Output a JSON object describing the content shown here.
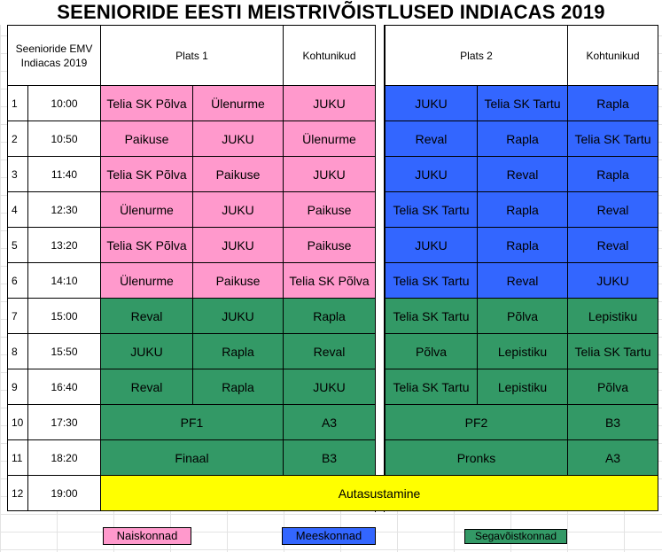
{
  "title": "SEENIORIDE EESTI MEISTRIVÕISTLUSED INDIACAS 2019",
  "header": {
    "corner": "Seenioride EMV Indiacas 2019",
    "court1": "Plats 1",
    "referees1": "Kohtunikud",
    "court2": "Plats 2",
    "referees2": "Kohtunikud"
  },
  "rows": [
    {
      "n": "1",
      "time": "10:00",
      "c1a": "Telia SK Põlva",
      "c1b": "Ülenurme",
      "r1": "JUKU",
      "c2a": "JUKU",
      "c2b": "Telia SK Tartu",
      "r2": "Rapla"
    },
    {
      "n": "2",
      "time": "10:50",
      "c1a": "Paikuse",
      "c1b": "JUKU",
      "r1": "Ülenurme",
      "c2a": "Reval",
      "c2b": "Rapla",
      "r2": "Telia SK Tartu"
    },
    {
      "n": "3",
      "time": "11:40",
      "c1a": "Telia SK Põlva",
      "c1b": "Paikuse",
      "r1": "JUKU",
      "c2a": "JUKU",
      "c2b": "Reval",
      "r2": "Rapla"
    },
    {
      "n": "4",
      "time": "12:30",
      "c1a": "Ülenurme",
      "c1b": "JUKU",
      "r1": "Paikuse",
      "c2a": "Telia SK Tartu",
      "c2b": "Rapla",
      "r2": "Reval"
    },
    {
      "n": "5",
      "time": "13:20",
      "c1a": "Telia SK Põlva",
      "c1b": "JUKU",
      "r1": "Paikuse",
      "c2a": "JUKU",
      "c2b": "Rapla",
      "r2": "Reval"
    },
    {
      "n": "6",
      "time": "14:10",
      "c1a": "Ülenurme",
      "c1b": "Paikuse",
      "r1": "Telia SK Põlva",
      "c2a": "Telia SK Tartu",
      "c2b": "Reval",
      "r2": "JUKU"
    },
    {
      "n": "7",
      "time": "15:00",
      "c1a": "Reval",
      "c1b": "JUKU",
      "r1": "Rapla",
      "c2a": "Telia SK Tartu",
      "c2b": "Põlva",
      "r2": "Lepistiku"
    },
    {
      "n": "8",
      "time": "15:50",
      "c1a": "JUKU",
      "c1b": "Rapla",
      "r1": "Reval",
      "c2a": "Põlva",
      "c2b": "Lepistiku",
      "r2": "Telia SK Tartu"
    },
    {
      "n": "9",
      "time": "16:40",
      "c1a": "Reval",
      "c1b": "Rapla",
      "r1": "JUKU",
      "c2a": "Telia SK Tartu",
      "c2b": "Lepistiku",
      "r2": "Põlva"
    }
  ],
  "finals": [
    {
      "n": "10",
      "time": "17:30",
      "m1": "PF1",
      "r1": "A3",
      "m2": "PF2",
      "r2": "B3"
    },
    {
      "n": "11",
      "time": "18:20",
      "m1": "Finaal",
      "r1": "B3",
      "m2": "Pronks",
      "r2": "A3"
    }
  ],
  "ceremony": {
    "n": "12",
    "time": "19:00",
    "label": "Autasustamine"
  },
  "legend": {
    "women": "Naiskonnad",
    "men": "Meeskonnad",
    "mixed": "Segavõistkonnad"
  },
  "colors": {
    "women": "#ff99cc",
    "men": "#3366ff",
    "mixed": "#339966",
    "ceremony": "#ffff00"
  }
}
